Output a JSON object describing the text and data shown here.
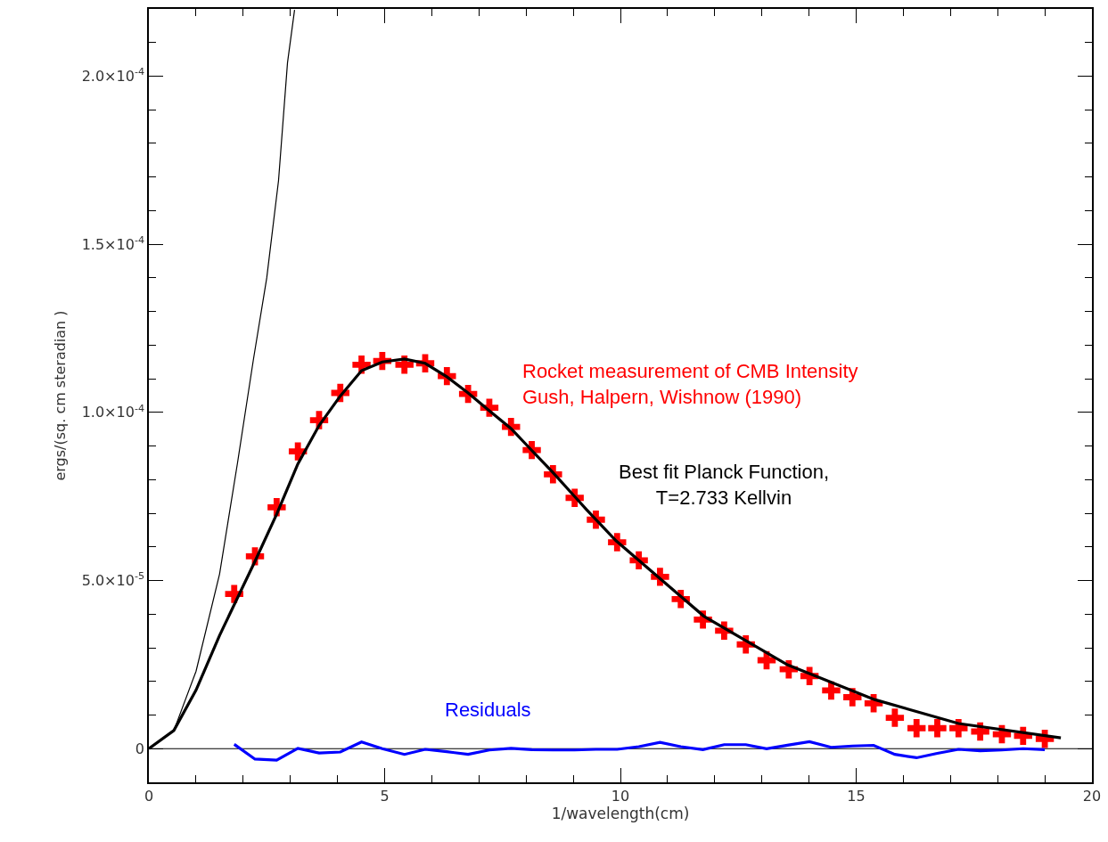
{
  "chart_data": {
    "type": "line",
    "xlabel": "1/wavelength(cm)",
    "ylabel": "ergs/(sq. cm steradian )",
    "xlim": [
      0,
      20
    ],
    "ylim": [
      -1e-05,
      0.00022
    ],
    "xticks": [
      0,
      {
        "value": 1,
        "label": null
      },
      {
        "value": 2,
        "label": null
      },
      {
        "value": 3,
        "label": null
      },
      {
        "value": 4,
        "label": null
      },
      5,
      {
        "value": 6,
        "label": null
      },
      {
        "value": 7,
        "label": null
      },
      {
        "value": 8,
        "label": null
      },
      {
        "value": 9,
        "label": null
      },
      10,
      {
        "value": 11,
        "label": null
      },
      {
        "value": 12,
        "label": null
      },
      {
        "value": 13,
        "label": null
      },
      {
        "value": 14,
        "label": null
      },
      15,
      {
        "value": 16,
        "label": null
      },
      {
        "value": 17,
        "label": null
      },
      {
        "value": 18,
        "label": null
      },
      {
        "value": 19,
        "label": null
      },
      20
    ],
    "yticks": [
      0,
      {
        "value": 1e-05,
        "label": null
      },
      {
        "value": 2e-05,
        "label": null
      },
      {
        "value": 3e-05,
        "label": null
      },
      {
        "value": 4e-05,
        "label": null
      },
      {
        "value": 5e-05,
        "label": "5.0×10$^{-5}$"
      },
      {
        "value": 6e-05,
        "label": null
      },
      {
        "value": 7e-05,
        "label": null
      },
      {
        "value": 8e-05,
        "label": null
      },
      {
        "value": 9e-05,
        "label": null
      },
      {
        "value": 0.0001,
        "label": "1.0×10$^{-4}$"
      },
      {
        "value": 0.00011,
        "label": null
      },
      {
        "value": 0.00012,
        "label": null
      },
      {
        "value": 0.00013,
        "label": null
      },
      {
        "value": 0.00014,
        "label": null
      },
      {
        "value": 0.00015,
        "label": "1.5×10$^{-4}$"
      },
      {
        "value": 0.00016,
        "label": null
      },
      {
        "value": 0.00017,
        "label": null
      },
      {
        "value": 0.00018,
        "label": null
      },
      {
        "value": 0.00019,
        "label": null
      },
      {
        "value": 0.0002,
        "label": "2.0×10$^{-4}$"
      },
      {
        "value": 0.00021,
        "label": null
      }
    ],
    "grid": false,
    "legend": false,
    "ref_lines": [
      {
        "axis": "y",
        "value": 0,
        "color": "#000000"
      }
    ],
    "series": [
      {
        "color": "#000000",
        "line_style": "solid",
        "x": [
          0,
          0.53,
          1.0,
          1.5,
          1.88,
          2.22,
          2.5,
          2.75,
          2.94,
          3.09
        ],
        "values": [
          0,
          5.4e-06,
          2.3e-05,
          5.2e-05,
          8.5e-05,
          0.000116,
          0.00014,
          0.000169,
          0.000204,
          0.0002197
        ]
      },
      {
        "name": "Best fit Planck Function,\nT=2.733 Kellvin",
        "color": "#000000",
        "line_style": "solid",
        "x": [
          0,
          0.53,
          1.0,
          1.5,
          2.25,
          2.71,
          3.16,
          3.61,
          4.06,
          4.51,
          4.95,
          5.42,
          5.86,
          6.32,
          6.77,
          7.22,
          7.68,
          8.12,
          8.57,
          9.03,
          9.28,
          9.91,
          11.77,
          13.55,
          15.39,
          17.17,
          19.34
        ],
        "values": [
          0,
          5.4e-06,
          1.74e-05,
          3.37e-05,
          5.57e-05,
          6.97e-05,
          8.47e-05,
          9.61e-05,
          0.0001049,
          0.0001124,
          0.000115,
          0.0001159,
          0.0001146,
          0.0001106,
          0.0001058,
          0.0001005,
          9.52e-05,
          8.87e-05,
          8.21e-05,
          7.5e-05,
          7.11e-05,
          6.18e-05,
          3.94e-05,
          2.49e-05,
          1.46e-05,
          7.5e-06,
          3.2e-06
        ]
      },
      {
        "type": "scatter",
        "name": "Rocket measurement of CMB Intensity\nGush, Halpern, Wishnow (1990)",
        "color": "#ff0000",
        "marker": "cross",
        "x": [
          1.81,
          2.25,
          2.71,
          3.16,
          3.61,
          4.06,
          4.51,
          4.95,
          5.42,
          5.86,
          6.32,
          6.77,
          7.22,
          7.68,
          8.12,
          8.57,
          9.03,
          9.48,
          9.93,
          10.39,
          10.84,
          11.28,
          11.75,
          12.2,
          12.66,
          13.1,
          13.57,
          14.01,
          14.47,
          14.92,
          15.37,
          15.82,
          16.28,
          16.72,
          17.17,
          17.63,
          18.09,
          18.54,
          19.0
        ],
        "values": [
          4.6e-05,
          5.72e-05,
          7.18e-05,
          8.84e-05,
          9.77e-05,
          0.0001058,
          0.0001142,
          0.0001153,
          0.0001142,
          0.0001146,
          0.0001108,
          0.0001055,
          0.0001014,
          9.57e-05,
          8.88e-05,
          8.16e-05,
          7.46e-05,
          6.81e-05,
          6.14e-05,
          5.6e-05,
          5.11e-05,
          4.45e-05,
          3.84e-05,
          3.51e-05,
          3.1e-05,
          2.63e-05,
          2.36e-05,
          2.16e-05,
          1.73e-05,
          1.53e-05,
          1.35e-05,
          9.2e-06,
          6.1e-06,
          6.1e-06,
          6.1e-06,
          5.1e-06,
          4.3e-06,
          3.8e-06,
          2.9e-06
        ]
      },
      {
        "name": "Residuals",
        "color": "#0000ff",
        "line_style": "solid",
        "x": [
          1.81,
          2.25,
          2.71,
          3.16,
          3.61,
          4.06,
          4.51,
          4.95,
          5.42,
          5.86,
          6.32,
          6.77,
          7.22,
          7.68,
          8.12,
          8.57,
          9.03,
          9.48,
          9.93,
          10.39,
          10.84,
          11.28,
          11.75,
          12.2,
          12.66,
          13.1,
          13.57,
          14.01,
          14.47,
          14.92,
          15.37,
          15.82,
          16.28,
          16.72,
          17.17,
          17.63,
          18.09,
          18.54,
          19.0
        ],
        "values": [
          1.3e-06,
          -3.1e-06,
          -3.4e-06,
          1e-07,
          -1.3e-06,
          -1e-06,
          2e-06,
          0,
          -1.7e-06,
          -2e-07,
          -9e-07,
          -1.7e-06,
          -4e-07,
          1e-07,
          -3e-07,
          -4e-07,
          -4e-07,
          -2e-07,
          -2e-07,
          6e-07,
          1.9e-06,
          6e-07,
          -3e-07,
          1.2e-06,
          1.2e-06,
          0,
          1.1e-06,
          2.1e-06,
          4e-07,
          8e-07,
          1e-06,
          -1.7e-06,
          -2.7e-06,
          -1.4e-06,
          -2e-07,
          -6e-07,
          -4e-07,
          0,
          -3e-07
        ]
      }
    ]
  }
}
